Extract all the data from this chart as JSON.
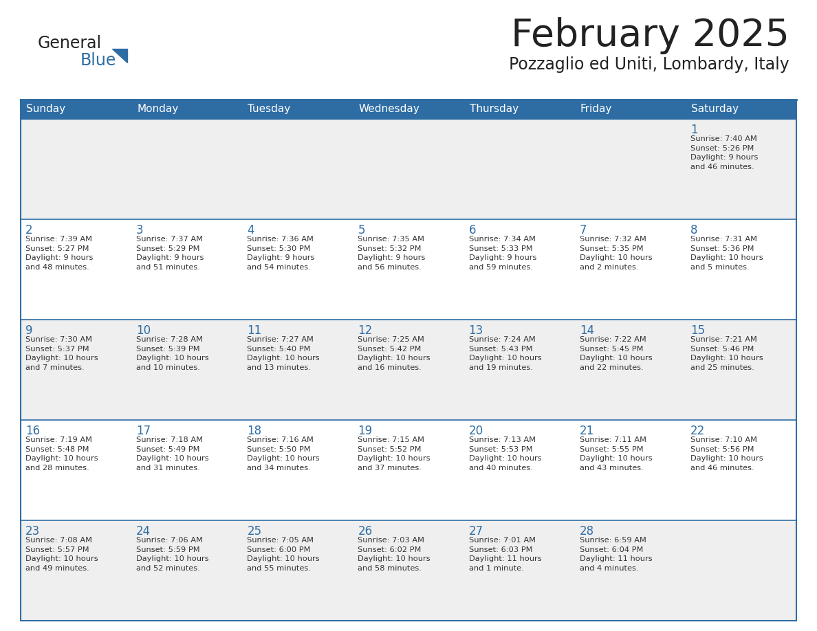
{
  "title": "February 2025",
  "subtitle": "Pozzaglio ed Uniti, Lombardy, Italy",
  "header_bg": "#2E6DA4",
  "header_text_color": "#FFFFFF",
  "cell_bg_odd": "#EFEFEF",
  "cell_bg_even": "#FFFFFF",
  "day_number_color": "#2E6DA4",
  "cell_text_color": "#333333",
  "grid_line_color": "#2E6DA4",
  "title_color": "#222222",
  "logo_general_color": "#222222",
  "logo_blue_color": "#2E6DA4",
  "logo_triangle_color": "#2E6DA4",
  "days_of_week": [
    "Sunday",
    "Monday",
    "Tuesday",
    "Wednesday",
    "Thursday",
    "Friday",
    "Saturday"
  ],
  "weeks": [
    [
      {
        "day": null,
        "text": ""
      },
      {
        "day": null,
        "text": ""
      },
      {
        "day": null,
        "text": ""
      },
      {
        "day": null,
        "text": ""
      },
      {
        "day": null,
        "text": ""
      },
      {
        "day": null,
        "text": ""
      },
      {
        "day": 1,
        "text": "Sunrise: 7:40 AM\nSunset: 5:26 PM\nDaylight: 9 hours\nand 46 minutes."
      }
    ],
    [
      {
        "day": 2,
        "text": "Sunrise: 7:39 AM\nSunset: 5:27 PM\nDaylight: 9 hours\nand 48 minutes."
      },
      {
        "day": 3,
        "text": "Sunrise: 7:37 AM\nSunset: 5:29 PM\nDaylight: 9 hours\nand 51 minutes."
      },
      {
        "day": 4,
        "text": "Sunrise: 7:36 AM\nSunset: 5:30 PM\nDaylight: 9 hours\nand 54 minutes."
      },
      {
        "day": 5,
        "text": "Sunrise: 7:35 AM\nSunset: 5:32 PM\nDaylight: 9 hours\nand 56 minutes."
      },
      {
        "day": 6,
        "text": "Sunrise: 7:34 AM\nSunset: 5:33 PM\nDaylight: 9 hours\nand 59 minutes."
      },
      {
        "day": 7,
        "text": "Sunrise: 7:32 AM\nSunset: 5:35 PM\nDaylight: 10 hours\nand 2 minutes."
      },
      {
        "day": 8,
        "text": "Sunrise: 7:31 AM\nSunset: 5:36 PM\nDaylight: 10 hours\nand 5 minutes."
      }
    ],
    [
      {
        "day": 9,
        "text": "Sunrise: 7:30 AM\nSunset: 5:37 PM\nDaylight: 10 hours\nand 7 minutes."
      },
      {
        "day": 10,
        "text": "Sunrise: 7:28 AM\nSunset: 5:39 PM\nDaylight: 10 hours\nand 10 minutes."
      },
      {
        "day": 11,
        "text": "Sunrise: 7:27 AM\nSunset: 5:40 PM\nDaylight: 10 hours\nand 13 minutes."
      },
      {
        "day": 12,
        "text": "Sunrise: 7:25 AM\nSunset: 5:42 PM\nDaylight: 10 hours\nand 16 minutes."
      },
      {
        "day": 13,
        "text": "Sunrise: 7:24 AM\nSunset: 5:43 PM\nDaylight: 10 hours\nand 19 minutes."
      },
      {
        "day": 14,
        "text": "Sunrise: 7:22 AM\nSunset: 5:45 PM\nDaylight: 10 hours\nand 22 minutes."
      },
      {
        "day": 15,
        "text": "Sunrise: 7:21 AM\nSunset: 5:46 PM\nDaylight: 10 hours\nand 25 minutes."
      }
    ],
    [
      {
        "day": 16,
        "text": "Sunrise: 7:19 AM\nSunset: 5:48 PM\nDaylight: 10 hours\nand 28 minutes."
      },
      {
        "day": 17,
        "text": "Sunrise: 7:18 AM\nSunset: 5:49 PM\nDaylight: 10 hours\nand 31 minutes."
      },
      {
        "day": 18,
        "text": "Sunrise: 7:16 AM\nSunset: 5:50 PM\nDaylight: 10 hours\nand 34 minutes."
      },
      {
        "day": 19,
        "text": "Sunrise: 7:15 AM\nSunset: 5:52 PM\nDaylight: 10 hours\nand 37 minutes."
      },
      {
        "day": 20,
        "text": "Sunrise: 7:13 AM\nSunset: 5:53 PM\nDaylight: 10 hours\nand 40 minutes."
      },
      {
        "day": 21,
        "text": "Sunrise: 7:11 AM\nSunset: 5:55 PM\nDaylight: 10 hours\nand 43 minutes."
      },
      {
        "day": 22,
        "text": "Sunrise: 7:10 AM\nSunset: 5:56 PM\nDaylight: 10 hours\nand 46 minutes."
      }
    ],
    [
      {
        "day": 23,
        "text": "Sunrise: 7:08 AM\nSunset: 5:57 PM\nDaylight: 10 hours\nand 49 minutes."
      },
      {
        "day": 24,
        "text": "Sunrise: 7:06 AM\nSunset: 5:59 PM\nDaylight: 10 hours\nand 52 minutes."
      },
      {
        "day": 25,
        "text": "Sunrise: 7:05 AM\nSunset: 6:00 PM\nDaylight: 10 hours\nand 55 minutes."
      },
      {
        "day": 26,
        "text": "Sunrise: 7:03 AM\nSunset: 6:02 PM\nDaylight: 10 hours\nand 58 minutes."
      },
      {
        "day": 27,
        "text": "Sunrise: 7:01 AM\nSunset: 6:03 PM\nDaylight: 11 hours\nand 1 minute."
      },
      {
        "day": 28,
        "text": "Sunrise: 6:59 AM\nSunset: 6:04 PM\nDaylight: 11 hours\nand 4 minutes."
      },
      {
        "day": null,
        "text": ""
      }
    ]
  ]
}
